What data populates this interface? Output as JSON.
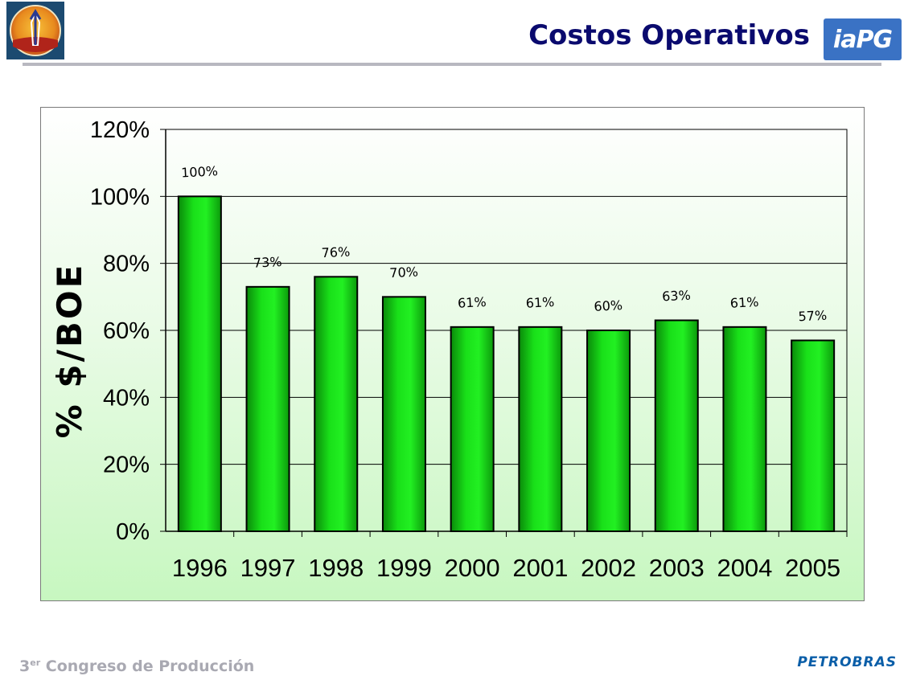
{
  "header": {
    "title": "Costos Operativos",
    "logo_left_icon": "oil-derrick-logo",
    "logo_right_text": "iaPG"
  },
  "footer": {
    "ordinal": "3",
    "ordinal_suffix": "er",
    "event": "Congreso de Producción",
    "brand": "PETROBRAS"
  },
  "colors": {
    "title": "#0a0a6e",
    "bar_fill": "#19e019",
    "bar_stroke": "#000000",
    "plot_background_top": "#ffffff",
    "plot_background_bottom": "#c7f7c0",
    "footer_text": "#a9a9b2",
    "brand": "#0a5ea8"
  },
  "chart_data": {
    "type": "bar",
    "title": "",
    "xlabel": "",
    "ylabel": "% $/BOE",
    "categories": [
      "1996",
      "1997",
      "1998",
      "1999",
      "2000",
      "2001",
      "2002",
      "2003",
      "2004",
      "2005"
    ],
    "values": [
      100,
      73,
      76,
      70,
      61,
      61,
      60,
      63,
      61,
      57
    ],
    "data_labels": [
      "100%",
      "73%",
      "76%",
      "70%",
      "61%",
      "61%",
      "60%",
      "63%",
      "61%",
      "57%"
    ],
    "ylim": [
      0,
      120
    ],
    "yticks": [
      0,
      20,
      40,
      60,
      80,
      100,
      120
    ],
    "ytick_labels": [
      "0%",
      "20%",
      "40%",
      "60%",
      "80%",
      "100%",
      "120%"
    ],
    "grid": true,
    "legend": false
  }
}
